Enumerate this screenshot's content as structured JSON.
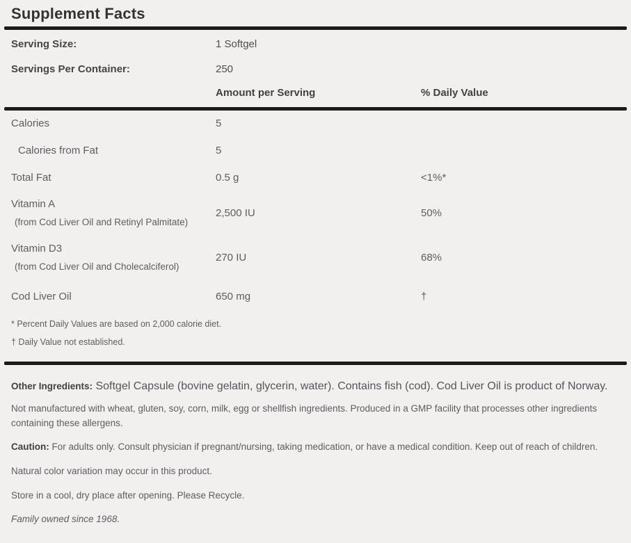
{
  "panel": {
    "title": "Supplement Facts",
    "serving": [
      {
        "label": "Serving Size:",
        "value": "1 Softgel"
      },
      {
        "label": "Servings Per Container:",
        "value": "250"
      }
    ],
    "columns": {
      "amount": "Amount per Serving",
      "daily_value": "% Daily Value"
    },
    "rows": [
      {
        "name": "Calories",
        "amount": "5",
        "dv": ""
      },
      {
        "name": "Calories from Fat",
        "amount": "5",
        "dv": ""
      },
      {
        "name": "Total Fat",
        "amount": "0.5 g",
        "dv": "<1%*"
      },
      {
        "name": "Vitamin A",
        "sub": "(from Cod Liver Oil and Retinyl Palmitate)",
        "amount": "2,500 IU",
        "dv": "50%"
      },
      {
        "name": "Vitamin D3",
        "sub": "(from Cod Liver Oil and Cholecalciferol)",
        "amount": "270 IU",
        "dv": "68%"
      },
      {
        "name": "Cod Liver Oil",
        "amount": "650 mg",
        "dv": "†"
      }
    ],
    "footnotes": [
      "* Percent Daily Values are based on 2,000 calorie diet.",
      "† Daily Value not established."
    ],
    "other_ingredients": {
      "label": "Other Ingredients:",
      "text": " Softgel Capsule (bovine gelatin, glycerin, water). Contains fish (cod). Cod Liver Oil is product of Norway."
    },
    "allergen_note": "Not manufactured with wheat, gluten, soy, corn, milk, egg or shellfish ingredients. Produced in a GMP facility that processes other ingredients containing these allergens.",
    "caution": {
      "label": "Caution:",
      "text": " For adults only. Consult physician if pregnant/nursing, taking medication, or have a medical condition. Keep out of reach of children."
    },
    "notes": [
      "Natural color variation may occur in this product.",
      "Store in a cool, dry place after opening. Please Recycle."
    ],
    "tagline": "Family owned since 1968.",
    "colors": {
      "background": "#f1f0ef",
      "rule": "#1b1b1b",
      "title_text": "#333333",
      "heading_text": "#414143",
      "body_text": "#5d5c60"
    }
  }
}
